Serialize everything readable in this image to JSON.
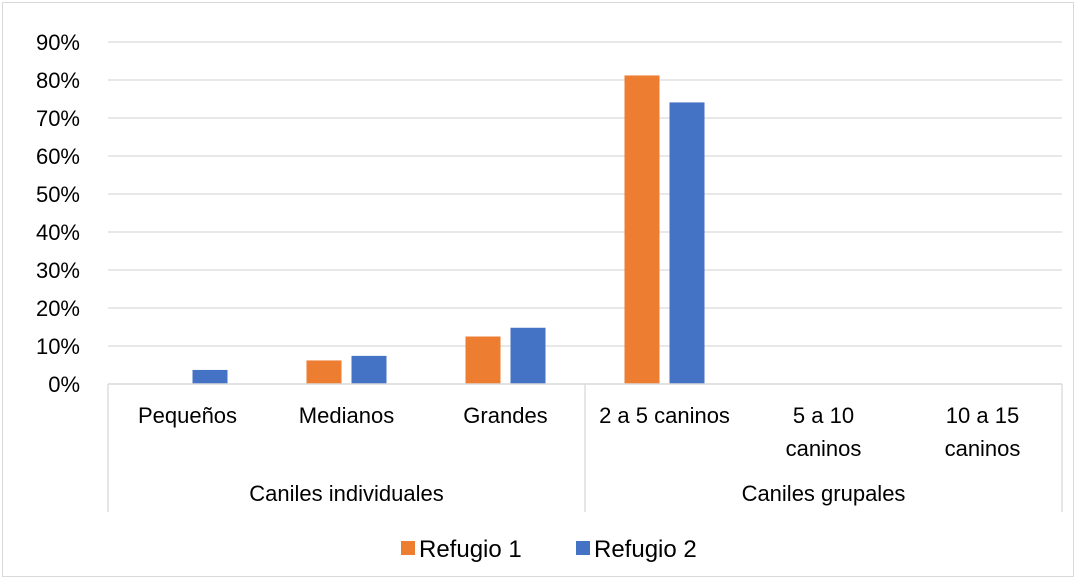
{
  "chart_data": {
    "type": "bar",
    "categories": [
      [
        "Pequeños"
      ],
      [
        "Medianos"
      ],
      [
        "Grandes"
      ],
      [
        "2 a 5 caninos"
      ],
      [
        "5 a 10",
        "caninos"
      ],
      [
        "10 a 15",
        "caninos"
      ]
    ],
    "groups": [
      {
        "label": "Caniles individuales",
        "start": 0,
        "end": 2
      },
      {
        "label": "Caniles grupales",
        "start": 3,
        "end": 5
      }
    ],
    "series": [
      {
        "name": "Refugio 1",
        "color": "#ED7D31",
        "values": [
          0,
          6.2,
          12.5,
          81.2,
          0,
          0
        ]
      },
      {
        "name": "Refugio 2",
        "color": "#4472C4",
        "values": [
          3.7,
          7.4,
          14.8,
          74.1,
          0,
          0
        ]
      }
    ],
    "yticks": [
      "0%",
      "10%",
      "20%",
      "30%",
      "40%",
      "50%",
      "60%",
      "70%",
      "80%",
      "90%"
    ],
    "ylim": [
      0,
      90
    ],
    "title": "",
    "xlabel": "",
    "ylabel": "",
    "grid": true,
    "legend": "bottom"
  }
}
